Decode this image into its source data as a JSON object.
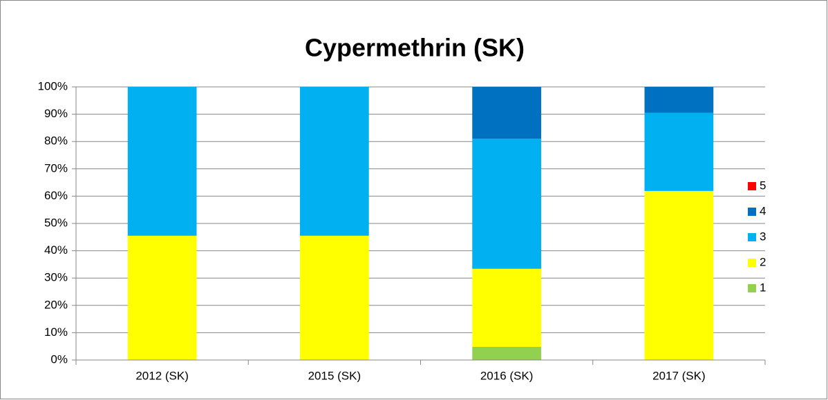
{
  "chart_data": {
    "type": "stacked_bar",
    "title": "Cypermethrin (SK)",
    "categories": [
      "2012 (SK)",
      "2015 (SK)",
      "2016 (SK)",
      "2017 (SK)"
    ],
    "series": [
      {
        "name": "1",
        "color": "#92d050",
        "values": [
          0,
          0,
          4.8,
          0
        ]
      },
      {
        "name": "2",
        "color": "#ffff00",
        "values": [
          45.5,
          45.5,
          28.6,
          61.9
        ]
      },
      {
        "name": "3",
        "color": "#00b0f0",
        "values": [
          54.5,
          54.5,
          47.6,
          28.6
        ]
      },
      {
        "name": "4",
        "color": "#0070c0",
        "values": [
          0,
          0,
          19.0,
          9.5
        ]
      },
      {
        "name": "5",
        "color": "#ff0000",
        "values": [
          0,
          0,
          0,
          0
        ]
      }
    ],
    "ylim": [
      0,
      100
    ],
    "yticks": [
      {
        "value": 0,
        "label": "0%"
      },
      {
        "value": 10,
        "label": "10%"
      },
      {
        "value": 20,
        "label": "20%"
      },
      {
        "value": 30,
        "label": "30%"
      },
      {
        "value": 40,
        "label": "40%"
      },
      {
        "value": 50,
        "label": "50%"
      },
      {
        "value": 60,
        "label": "60%"
      },
      {
        "value": 70,
        "label": "70%"
      },
      {
        "value": 80,
        "label": "80%"
      },
      {
        "value": 90,
        "label": "90%"
      },
      {
        "value": 100,
        "label": "100%"
      }
    ],
    "grid": true,
    "legend": "right"
  }
}
